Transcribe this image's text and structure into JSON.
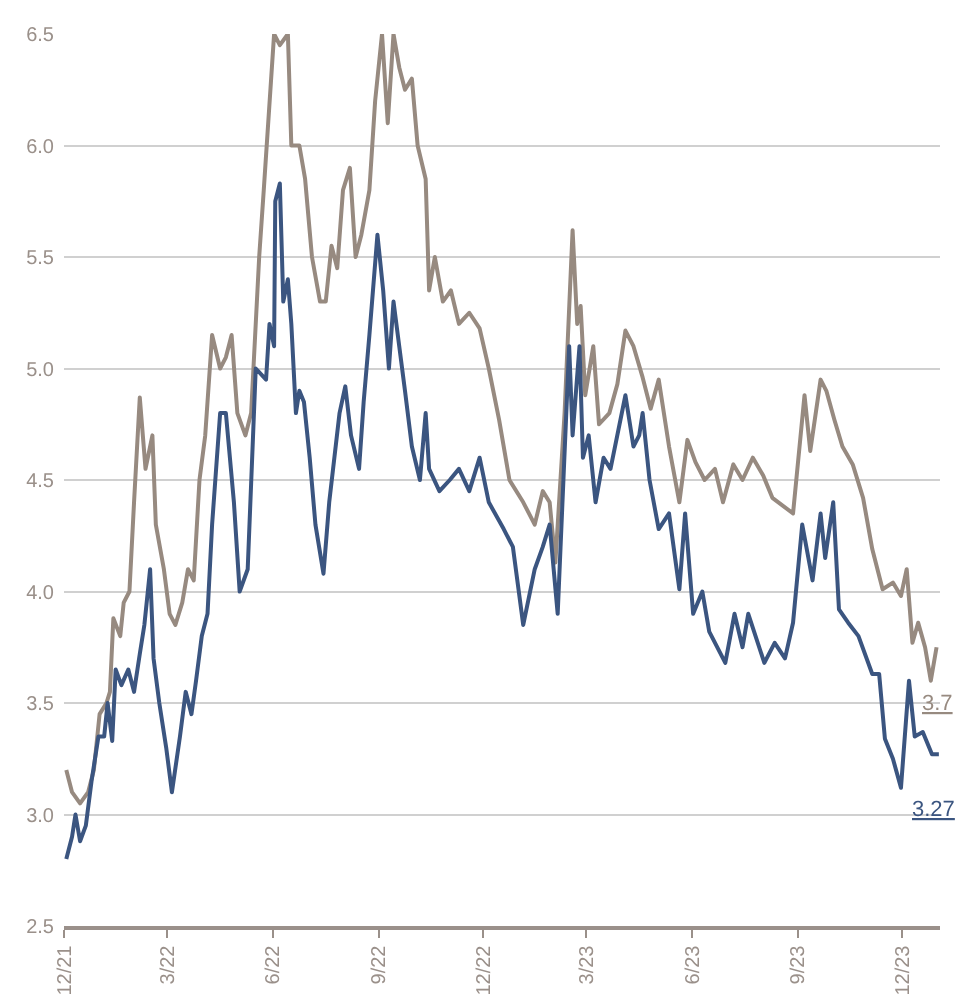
{
  "chart_data": {
    "type": "line",
    "xlim": [
      "2021-12-01",
      "2024-01-03"
    ],
    "xticks": [
      {
        "value": "2021-12-01",
        "label": "12/21"
      },
      {
        "value": "2022-03-01",
        "label": "3/22"
      },
      {
        "value": "2022-06-01",
        "label": "6/22"
      },
      {
        "value": "2022-09-01",
        "label": "9/22"
      },
      {
        "value": "2022-12-01",
        "label": "12/22"
      },
      {
        "value": "2023-03-01",
        "label": "3/23"
      },
      {
        "value": "2023-06-01",
        "label": "6/23"
      },
      {
        "value": "2023-09-01",
        "label": "9/23"
      },
      {
        "value": "2023-12-01",
        "label": "12/23"
      }
    ],
    "ylim": [
      2.5,
      6.5
    ],
    "yticks": [
      2.5,
      {
        "value": 3,
        "label": "3.0"
      },
      3.5,
      {
        "value": 4,
        "label": "4.0"
      },
      4.5,
      {
        "value": 5,
        "label": "5.0"
      },
      5.5,
      {
        "value": 6,
        "label": "6.0"
      },
      6.5
    ],
    "grid": "y",
    "marker": "none",
    "line_style": "solid",
    "series": [
      {
        "color": "#978a80",
        "x": [
          "2021-12-03",
          "2021-12-08",
          "2021-12-15",
          "2021-12-22",
          "2021-12-27",
          "2022-01-01",
          "2022-01-07",
          "2022-01-10",
          "2022-01-13",
          "2022-01-19",
          "2022-01-22",
          "2022-01-27",
          "2022-01-31",
          "2022-02-05",
          "2022-02-10",
          "2022-02-16",
          "2022-02-19",
          "2022-02-26",
          "2022-03-03",
          "2022-03-08",
          "2022-03-14",
          "2022-03-19",
          "2022-03-24",
          "2022-03-29",
          "2022-04-03",
          "2022-04-09",
          "2022-04-16",
          "2022-04-21",
          "2022-04-26",
          "2022-05-01",
          "2022-05-08",
          "2022-05-13",
          "2022-05-20",
          "2022-05-24",
          "2022-06-02",
          "2022-06-07",
          "2022-06-14",
          "2022-06-17",
          "2022-06-24",
          "2022-06-29",
          "2022-07-05",
          "2022-07-12",
          "2022-07-17",
          "2022-07-22",
          "2022-07-27",
          "2022-08-01",
          "2022-08-07",
          "2022-08-12",
          "2022-08-17",
          "2022-08-24",
          "2022-08-29",
          "2022-09-04",
          "2022-09-09",
          "2022-09-14",
          "2022-09-19",
          "2022-09-24",
          "2022-09-30",
          "2022-10-05",
          "2022-10-12",
          "2022-10-15",
          "2022-10-20",
          "2022-10-27",
          "2022-11-03",
          "2022-11-10",
          "2022-11-19",
          "2022-11-28",
          "2022-12-06",
          "2022-12-15",
          "2022-12-24",
          "2023-01-05",
          "2023-01-15",
          "2023-01-22",
          "2023-01-28",
          "2023-02-02",
          "2023-02-10",
          "2023-02-14",
          "2023-02-17",
          "2023-02-21",
          "2023-02-24",
          "2023-02-28",
          "2023-03-07",
          "2023-03-12",
          "2023-03-21",
          "2023-03-28",
          "2023-04-04",
          "2023-04-11",
          "2023-04-19",
          "2023-04-26",
          "2023-05-03",
          "2023-05-12",
          "2023-05-21",
          "2023-05-28",
          "2023-06-04",
          "2023-06-12",
          "2023-06-21",
          "2023-06-28",
          "2023-07-07",
          "2023-07-15",
          "2023-07-24",
          "2023-08-02",
          "2023-08-10",
          "2023-08-28",
          "2023-09-07",
          "2023-09-12",
          "2023-09-21",
          "2023-09-26",
          "2023-10-03",
          "2023-10-10",
          "2023-10-19",
          "2023-10-28",
          "2023-11-05",
          "2023-11-14",
          "2023-11-23",
          "2023-11-30",
          "2023-12-05",
          "2023-12-10",
          "2023-12-15",
          "2023-12-21",
          "2023-12-26",
          "2023-12-31"
        ],
        "values": [
          3.2,
          3.1,
          3.05,
          3.1,
          3.2,
          3.45,
          3.5,
          3.55,
          3.88,
          3.8,
          3.95,
          4.0,
          4.4,
          4.87,
          4.55,
          4.7,
          4.3,
          4.1,
          3.9,
          3.85,
          3.95,
          4.1,
          4.05,
          4.5,
          4.7,
          5.15,
          5.0,
          5.05,
          5.15,
          4.8,
          4.7,
          4.8,
          5.5,
          5.8,
          6.5,
          6.45,
          6.5,
          6.0,
          6.0,
          5.85,
          5.5,
          5.3,
          5.3,
          5.55,
          5.45,
          5.8,
          5.9,
          5.5,
          5.6,
          5.8,
          6.2,
          6.5,
          6.1,
          6.5,
          6.35,
          6.25,
          6.3,
          6.0,
          5.85,
          5.35,
          5.5,
          5.3,
          5.35,
          5.2,
          5.25,
          5.18,
          5.0,
          4.77,
          4.5,
          4.4,
          4.3,
          4.45,
          4.4,
          4.13,
          4.8,
          5.27,
          5.62,
          5.2,
          5.28,
          4.88,
          5.1,
          4.75,
          4.8,
          4.93,
          5.17,
          5.1,
          4.96,
          4.82,
          4.95,
          4.65,
          4.4,
          4.68,
          4.58,
          4.5,
          4.55,
          4.4,
          4.57,
          4.5,
          4.6,
          4.52,
          4.42,
          4.35,
          4.88,
          4.63,
          4.95,
          4.9,
          4.77,
          4.65,
          4.57,
          4.42,
          4.19,
          4.01,
          4.04,
          3.98,
          4.1,
          3.77,
          3.86,
          3.75,
          3.6,
          3.75
        ]
      },
      {
        "color": "#3b5580",
        "x": [
          "2021-12-03",
          "2021-12-08",
          "2021-12-11",
          "2021-12-15",
          "2021-12-20",
          "2021-12-25",
          "2021-12-31",
          "2022-01-05",
          "2022-01-08",
          "2022-01-12",
          "2022-01-15",
          "2022-01-20",
          "2022-01-26",
          "2022-01-31",
          "2022-02-05",
          "2022-02-09",
          "2022-02-12",
          "2022-02-14",
          "2022-02-17",
          "2022-02-22",
          "2022-02-28",
          "2022-03-05",
          "2022-03-12",
          "2022-03-17",
          "2022-03-22",
          "2022-03-26",
          "2022-03-31",
          "2022-04-05",
          "2022-04-09",
          "2022-04-16",
          "2022-04-21",
          "2022-04-28",
          "2022-05-03",
          "2022-05-10",
          "2022-05-17",
          "2022-05-26",
          "2022-05-29",
          "2022-06-02",
          "2022-06-03",
          "2022-06-07",
          "2022-06-10",
          "2022-06-14",
          "2022-06-17",
          "2022-06-21",
          "2022-06-24",
          "2022-06-28",
          "2022-07-03",
          "2022-07-08",
          "2022-07-15",
          "2022-07-20",
          "2022-07-29",
          "2022-08-03",
          "2022-08-08",
          "2022-08-15",
          "2022-08-19",
          "2022-08-24",
          "2022-08-31",
          "2022-09-05",
          "2022-09-10",
          "2022-09-14",
          "2022-09-19",
          "2022-09-24",
          "2022-09-30",
          "2022-10-07",
          "2022-10-12",
          "2022-10-15",
          "2022-10-24",
          "2022-11-02",
          "2022-11-10",
          "2022-11-19",
          "2022-11-28",
          "2022-12-06",
          "2022-12-19",
          "2022-12-27",
          "2023-01-05",
          "2023-01-15",
          "2023-01-22",
          "2023-01-28",
          "2023-02-04",
          "2023-02-09",
          "2023-02-14",
          "2023-02-17",
          "2023-02-23",
          "2023-02-26",
          "2023-03-03",
          "2023-03-09",
          "2023-03-16",
          "2023-03-22",
          "2023-04-04",
          "2023-04-11",
          "2023-04-16",
          "2023-04-19",
          "2023-04-25",
          "2023-05-03",
          "2023-05-12",
          "2023-05-21",
          "2023-05-26",
          "2023-06-02",
          "2023-06-10",
          "2023-06-16",
          "2023-06-30",
          "2023-07-08",
          "2023-07-15",
          "2023-07-20",
          "2023-08-03",
          "2023-08-12",
          "2023-08-21",
          "2023-08-28",
          "2023-09-05",
          "2023-09-14",
          "2023-09-21",
          "2023-09-25",
          "2023-10-02",
          "2023-10-07",
          "2023-10-15",
          "2023-10-24",
          "2023-11-05",
          "2023-11-11",
          "2023-11-16",
          "2023-11-23",
          "2023-11-30",
          "2023-12-07",
          "2023-12-12",
          "2023-12-19",
          "2023-12-27",
          "2024-01-02"
        ],
        "values": [
          2.8,
          2.9,
          3.0,
          2.88,
          2.95,
          3.15,
          3.35,
          3.35,
          3.5,
          3.33,
          3.65,
          3.58,
          3.65,
          3.55,
          3.72,
          3.85,
          4.0,
          4.1,
          3.7,
          3.5,
          3.3,
          3.1,
          3.35,
          3.55,
          3.45,
          3.6,
          3.8,
          3.9,
          4.3,
          4.8,
          4.8,
          4.4,
          4.0,
          4.1,
          5.0,
          4.95,
          5.2,
          5.1,
          5.75,
          5.83,
          5.3,
          5.4,
          5.2,
          4.8,
          4.9,
          4.85,
          4.6,
          4.3,
          4.08,
          4.4,
          4.8,
          4.92,
          4.7,
          4.55,
          4.85,
          5.15,
          5.6,
          5.35,
          5.0,
          5.3,
          5.1,
          4.9,
          4.65,
          4.5,
          4.8,
          4.55,
          4.45,
          4.5,
          4.55,
          4.45,
          4.6,
          4.4,
          4.28,
          4.2,
          3.85,
          4.1,
          4.2,
          4.3,
          3.9,
          4.5,
          5.1,
          4.7,
          5.1,
          4.6,
          4.7,
          4.4,
          4.6,
          4.55,
          4.88,
          4.65,
          4.7,
          4.8,
          4.5,
          4.28,
          4.35,
          4.01,
          4.35,
          3.9,
          4.0,
          3.82,
          3.68,
          3.9,
          3.75,
          3.9,
          3.68,
          3.77,
          3.7,
          3.86,
          4.3,
          4.05,
          4.35,
          4.15,
          4.4,
          3.92,
          3.86,
          3.8,
          3.63,
          3.63,
          3.34,
          3.25,
          3.12,
          3.6,
          3.35,
          3.37,
          3.27,
          3.27
        ]
      }
    ],
    "annotations": [
      {
        "text": "3.7",
        "x": "2023-12-31",
        "y": 3.75
      },
      {
        "text": "3.27",
        "x": "2024-01-02",
        "y": 3.27
      }
    ]
  }
}
